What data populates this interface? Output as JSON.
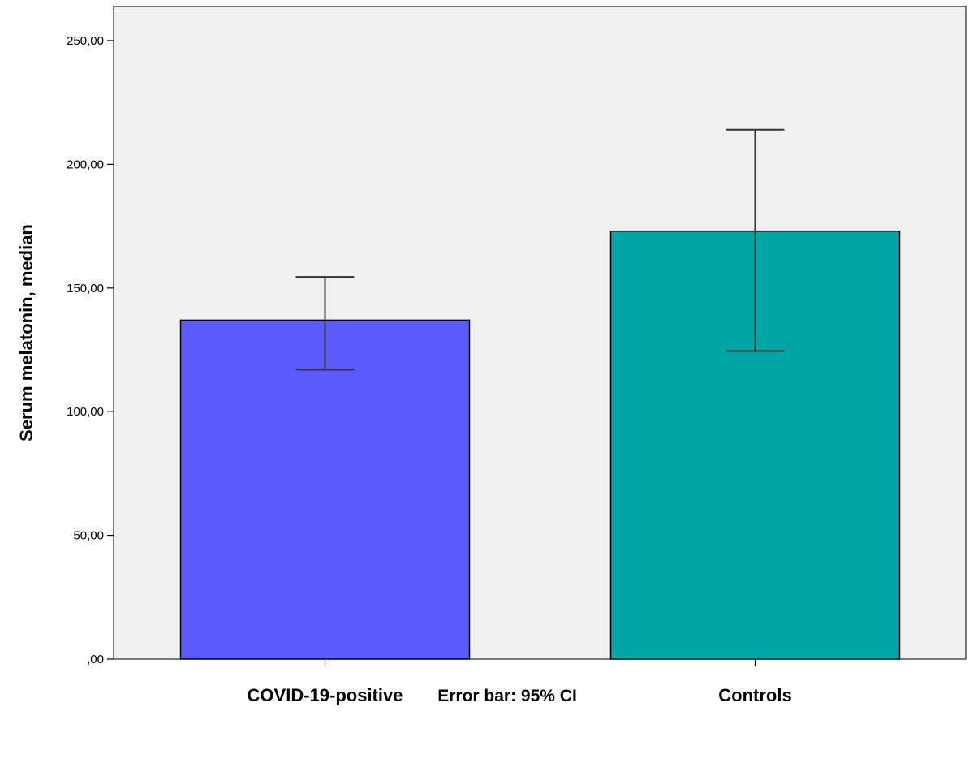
{
  "chart_data": {
    "type": "bar",
    "categories": [
      "COVID-19-positive",
      "Controls"
    ],
    "values": [
      137,
      173
    ],
    "error_low": [
      117,
      124.5
    ],
    "error_high": [
      154.5,
      214
    ],
    "bar_colors": [
      "#5a5aff",
      "#00a6a6"
    ],
    "ylabel": "Serum melatonin, median",
    "xlabel": "",
    "ylim": [
      0,
      250
    ],
    "y_ticks": [
      0,
      50,
      100,
      150,
      200,
      250
    ],
    "y_tick_labels": [
      ",00",
      "50,00",
      "100,00",
      "150,00",
      "200,00",
      "250,00"
    ],
    "footnote": "Error bar: 95% CI",
    "plot_background": "#f0f0f0",
    "grid": false
  }
}
